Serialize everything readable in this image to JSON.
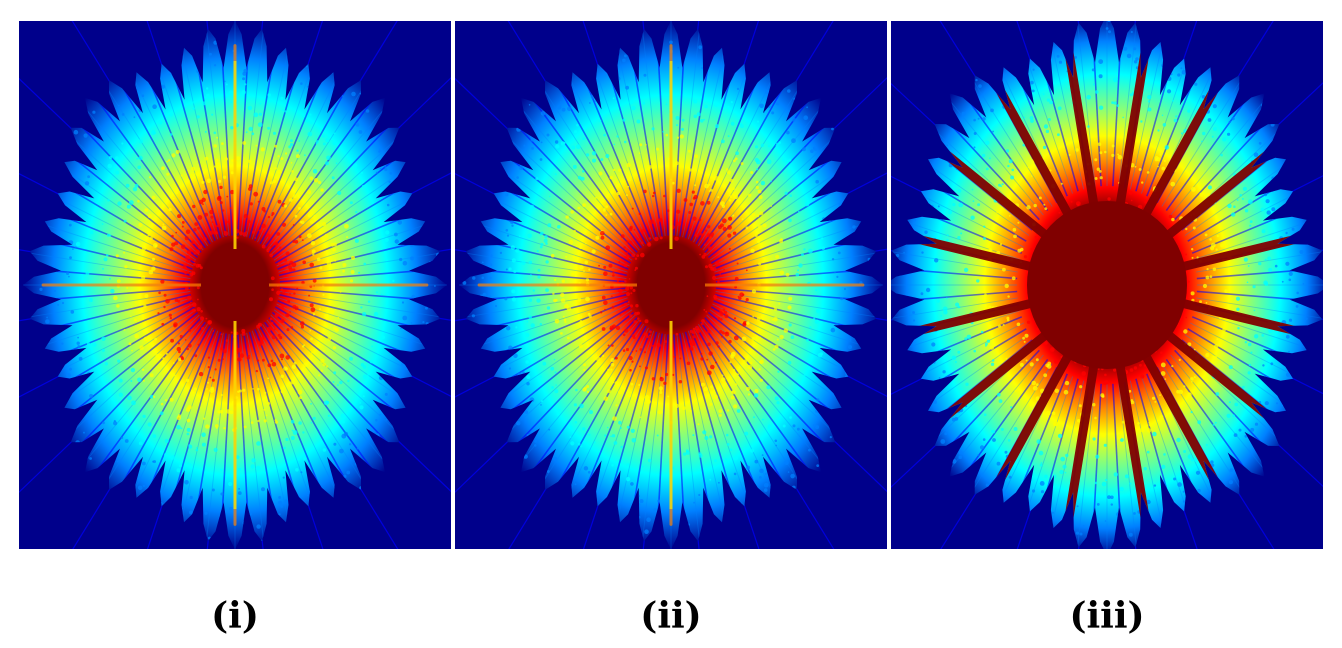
{
  "figure": {
    "colormap": [
      "#00008b",
      "#0000ff",
      "#0080ff",
      "#00ffff",
      "#80ff80",
      "#ffff00",
      "#ff8000",
      "#ff0000",
      "#800000"
    ],
    "background_color": "#00008b",
    "core_color": "#800000",
    "panels": [
      {
        "caption": "(i)",
        "ray_count": 48,
        "core_intensity": "medium",
        "dominant_rays": 4
      },
      {
        "caption": "(ii)",
        "ray_count": 48,
        "core_intensity": "medium",
        "dominant_rays": 4
      },
      {
        "caption": "(iii)",
        "ray_count": 48,
        "core_intensity": "high",
        "dominant_rays": 16
      }
    ]
  }
}
